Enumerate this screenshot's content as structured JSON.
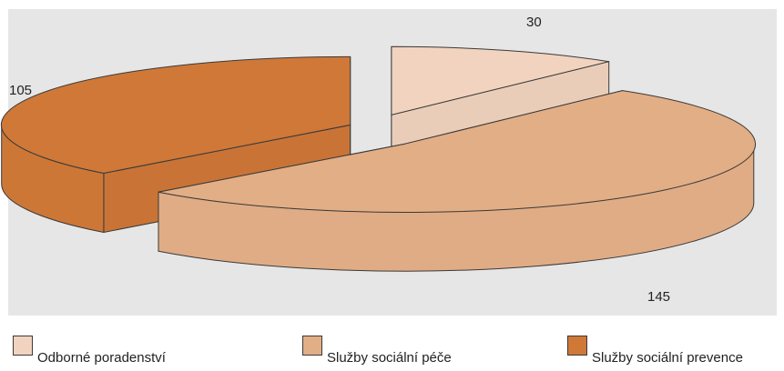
{
  "chart_data": {
    "type": "pie",
    "title": "",
    "categories": [
      "Odborné poradenství",
      "Služby sociální péče",
      "Služby sociální prevence"
    ],
    "values": [
      30,
      145,
      105
    ],
    "colors": [
      "#f1d3bf",
      "#e2ae86",
      "#cf7838"
    ],
    "data_labels": [
      "30",
      "145",
      "105"
    ],
    "legend": {
      "placement": "bottom",
      "items": [
        {
          "label": "Odborné poradenství",
          "color": "#f1d3bf"
        },
        {
          "label": "Služby sociální péče",
          "color": "#e2ae86"
        },
        {
          "label": "Služby sociální prevence",
          "color": "#cf7838"
        }
      ]
    },
    "style": {
      "three_d": true,
      "exploded": true,
      "background": "#e6e6e6",
      "outline": "#3a3a3a"
    }
  }
}
